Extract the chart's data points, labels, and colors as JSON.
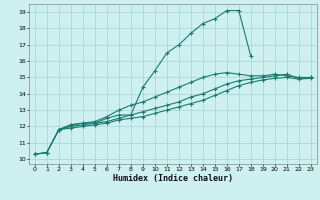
{
  "title": "",
  "xlabel": "Humidex (Indice chaleur)",
  "ylabel": "",
  "bg_color": "#cff0f0",
  "grid_color": "#aad8d8",
  "line_color": "#1a7a6e",
  "x_ticks": [
    0,
    1,
    2,
    3,
    4,
    5,
    6,
    7,
    8,
    9,
    10,
    11,
    12,
    13,
    14,
    15,
    16,
    17,
    18,
    19,
    20,
    21,
    22,
    23
  ],
  "y_ticks": [
    10,
    11,
    12,
    13,
    14,
    15,
    16,
    17,
    18,
    19
  ],
  "xlim": [
    -0.5,
    23.5
  ],
  "ylim": [
    9.7,
    19.5
  ],
  "series": [
    {
      "x": [
        0,
        1,
        2,
        3,
        4,
        5,
        6,
        7,
        8,
        9,
        10,
        11,
        12,
        13,
        14,
        15,
        16,
        17,
        18
      ],
      "y": [
        10.3,
        10.4,
        11.8,
        12.1,
        12.2,
        12.2,
        12.5,
        12.7,
        12.7,
        14.4,
        15.4,
        16.5,
        17.0,
        17.7,
        18.3,
        18.6,
        19.1,
        19.1,
        16.3
      ]
    },
    {
      "x": [
        2,
        3,
        4,
        5,
        6,
        7,
        8,
        9,
        10,
        11,
        12,
        13,
        14,
        15,
        16,
        17,
        18,
        19,
        20,
        21,
        22,
        23
      ],
      "y": [
        11.8,
        12.1,
        12.2,
        12.3,
        12.6,
        13.0,
        13.3,
        13.5,
        13.8,
        14.1,
        14.4,
        14.7,
        15.0,
        15.2,
        15.3,
        15.2,
        15.1,
        15.1,
        15.2,
        15.1,
        15.0,
        15.0
      ]
    },
    {
      "x": [
        0,
        1,
        2,
        3,
        4,
        5,
        6,
        7,
        8,
        9,
        10,
        11,
        12,
        13,
        14,
        15,
        16,
        17,
        18,
        19,
        20,
        21,
        22,
        23
      ],
      "y": [
        10.3,
        10.4,
        11.8,
        12.0,
        12.1,
        12.2,
        12.3,
        12.5,
        12.7,
        12.9,
        13.1,
        13.3,
        13.5,
        13.8,
        14.0,
        14.3,
        14.6,
        14.8,
        14.9,
        15.0,
        15.1,
        15.2,
        14.95,
        15.0
      ]
    },
    {
      "x": [
        0,
        1,
        2,
        3,
        4,
        5,
        6,
        7,
        8,
        9,
        10,
        11,
        12,
        13,
        14,
        15,
        16,
        17,
        18,
        19,
        20,
        21,
        22,
        23
      ],
      "y": [
        10.3,
        10.4,
        11.8,
        11.9,
        12.0,
        12.1,
        12.2,
        12.4,
        12.5,
        12.6,
        12.8,
        13.0,
        13.2,
        13.4,
        13.6,
        13.9,
        14.2,
        14.5,
        14.7,
        14.85,
        14.95,
        15.0,
        14.9,
        14.95
      ]
    }
  ]
}
